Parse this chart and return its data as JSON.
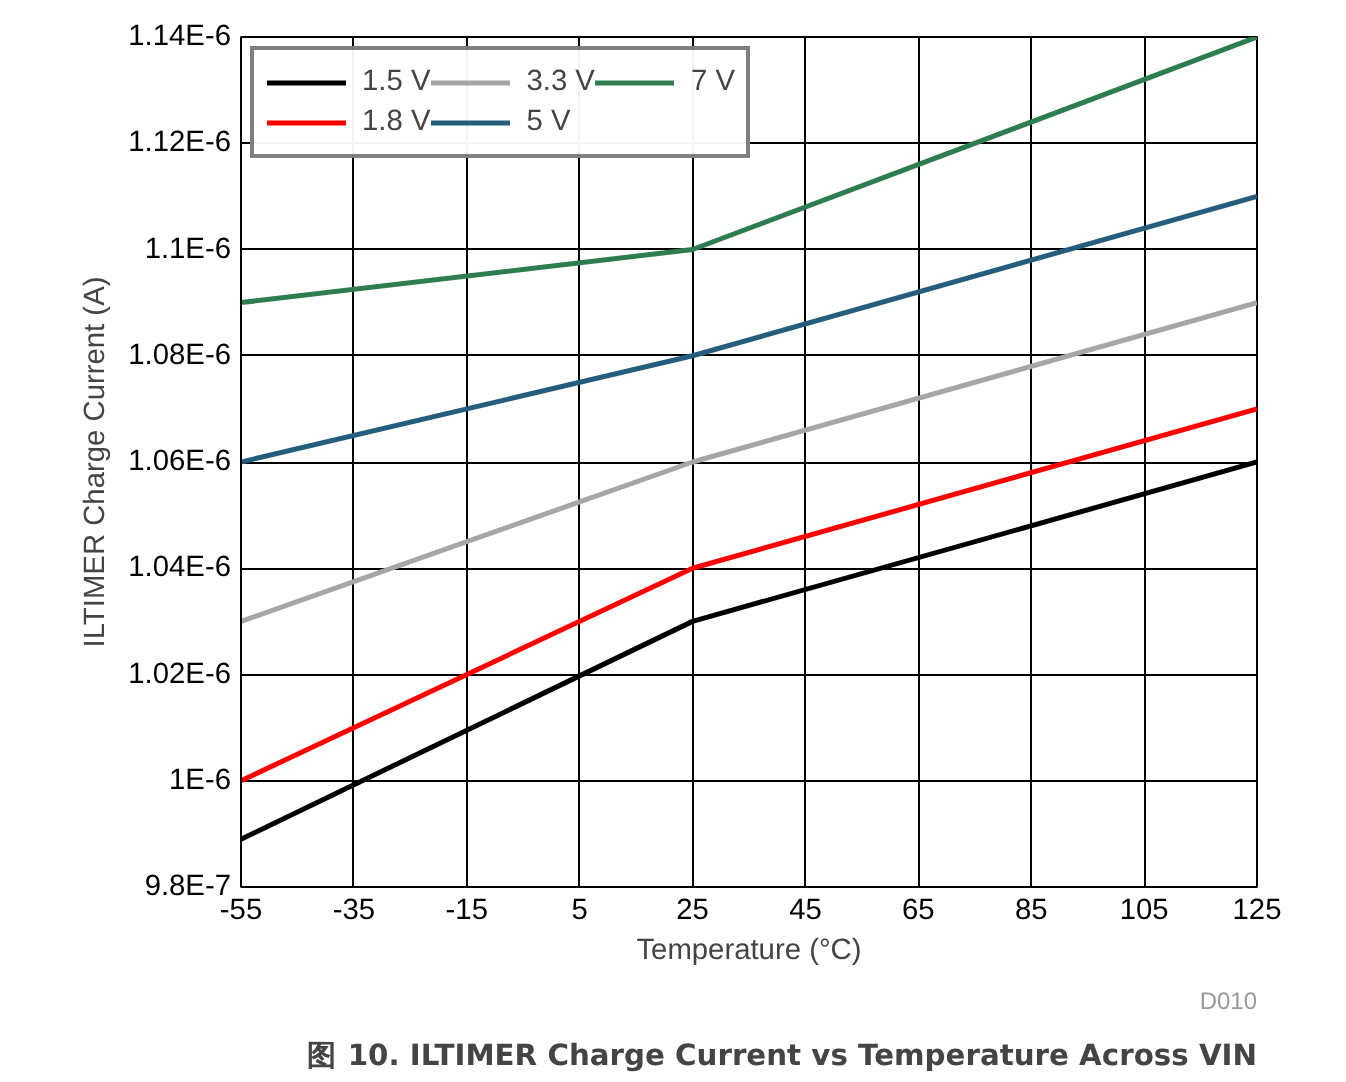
{
  "chart_data": {
    "type": "line",
    "title": "图 10. ILTIMER Charge Current vs Temperature Across VIN",
    "xlabel": "Temperature (°C)",
    "ylabel": "ILTIMER Charge Current (A)",
    "annotations": [
      "D010"
    ],
    "x": [
      -55,
      25,
      125
    ],
    "series": [
      {
        "name": "1.5 V",
        "color": "#000000",
        "values": [
          9.89e-07,
          1.03e-06,
          1.06e-06
        ]
      },
      {
        "name": "1.8 V",
        "color": "#ff0000",
        "values": [
          1e-06,
          1.04e-06,
          1.07e-06
        ]
      },
      {
        "name": "3.3 V",
        "color": "#a6a6a6",
        "values": [
          1.03e-06,
          1.06e-06,
          1.09e-06
        ]
      },
      {
        "name": "5 V",
        "color": "#255e7d",
        "values": [
          1.06e-06,
          1.08e-06,
          1.11e-06
        ]
      },
      {
        "name": "7 V",
        "color": "#2e7d4f",
        "values": [
          1.09e-06,
          1.1e-06,
          1.14e-06
        ]
      }
    ],
    "xlim": [
      -55,
      125
    ],
    "xticks": [
      -55,
      -35,
      -15,
      5,
      25,
      45,
      65,
      85,
      105,
      125
    ],
    "ylim": [
      9.8e-07,
      1.14e-06
    ],
    "yticks": [
      {
        "value": 9.8e-07,
        "label": "9.8E-7"
      },
      {
        "value": 1e-06,
        "label": "1E-6"
      },
      {
        "value": 1.02e-06,
        "label": "1.02E-6"
      },
      {
        "value": 1.04e-06,
        "label": "1.04E-6"
      },
      {
        "value": 1.06e-06,
        "label": "1.06E-6"
      },
      {
        "value": 1.08e-06,
        "label": "1.08E-6"
      },
      {
        "value": 1.1e-06,
        "label": "1.1E-6"
      },
      {
        "value": 1.12e-06,
        "label": "1.12E-6"
      },
      {
        "value": 1.14e-06,
        "label": "1.14E-6"
      }
    ],
    "grid": true,
    "legend": "top left",
    "marker": "none",
    "line_style": "solid"
  }
}
